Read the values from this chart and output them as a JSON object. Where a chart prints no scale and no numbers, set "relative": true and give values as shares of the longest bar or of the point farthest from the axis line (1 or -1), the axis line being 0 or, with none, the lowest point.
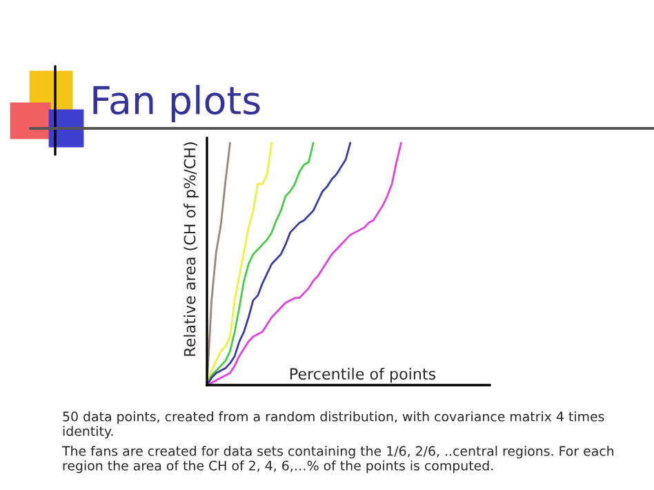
{
  "chart_data": {
    "type": "line",
    "title": "Fan plots",
    "xlabel": "Percentile of points",
    "ylabel": "Relative area (CH of p%/CH)",
    "relative": true,
    "grid": false,
    "legend": false,
    "marker": "none",
    "line_style": "solid",
    "categories": [
      null,
      null,
      null,
      null,
      null,
      null,
      null,
      null,
      null,
      null,
      null,
      null,
      null,
      null,
      null,
      null,
      null,
      null,
      null,
      null,
      null,
      null,
      null,
      null,
      null,
      null,
      null,
      null,
      null,
      null,
      null,
      null,
      null,
      null,
      null,
      null,
      null,
      null,
      null,
      null,
      null,
      null,
      null
    ],
    "series": [
      {
        "color": "#9c8478",
        "values": [
          0,
          0.35,
          0.55,
          0.66,
          0.84,
          1.0,
          null,
          null,
          null,
          null,
          null,
          null,
          null,
          null,
          null,
          null,
          null,
          null,
          null,
          null,
          null,
          null,
          null,
          null,
          null,
          null,
          null,
          null,
          null,
          null,
          null,
          null,
          null,
          null,
          null,
          null,
          null,
          null,
          null,
          null,
          null,
          null,
          null
        ]
      },
      {
        "color": "#f0f03c",
        "values": [
          0,
          0.06,
          0.1,
          0.14,
          0.16,
          0.2,
          0.35,
          0.45,
          0.55,
          0.65,
          0.72,
          0.83,
          0.83,
          0.87,
          1.0,
          null,
          null,
          null,
          null,
          null,
          null,
          null,
          null,
          null,
          null,
          null,
          null,
          null,
          null,
          null,
          null,
          null,
          null,
          null,
          null,
          null,
          null,
          null,
          null,
          null,
          null,
          null,
          null
        ]
      },
      {
        "color": "#44cc44",
        "values": [
          0,
          0.04,
          0.06,
          0.08,
          0.1,
          0.14,
          0.22,
          0.32,
          0.43,
          0.5,
          0.54,
          0.56,
          0.58,
          0.6,
          0.63,
          0.68,
          0.72,
          0.78,
          0.8,
          0.83,
          0.88,
          0.91,
          0.92,
          1.0,
          null,
          null,
          null,
          null,
          null,
          null,
          null,
          null,
          null,
          null,
          null,
          null,
          null,
          null,
          null,
          null,
          null,
          null,
          null
        ]
      },
      {
        "color": "#3a3aa0",
        "values": [
          0,
          0.03,
          0.05,
          0.06,
          0.07,
          0.09,
          0.12,
          0.18,
          0.22,
          0.28,
          0.35,
          0.37,
          0.42,
          0.46,
          0.5,
          0.52,
          0.54,
          0.58,
          0.63,
          0.65,
          0.67,
          0.68,
          0.7,
          0.72,
          0.76,
          0.8,
          0.82,
          0.85,
          0.87,
          0.9,
          0.93,
          1.0,
          null,
          null,
          null,
          null,
          null,
          null,
          null,
          null,
          null,
          null,
          null
        ]
      },
      {
        "color": "#e040e0",
        "values": [
          0,
          0.01,
          0.02,
          0.03,
          0.04,
          0.05,
          0.08,
          0.12,
          0.15,
          0.18,
          0.2,
          0.21,
          0.22,
          0.25,
          0.28,
          0.3,
          0.32,
          0.34,
          0.35,
          0.36,
          0.36,
          0.38,
          0.4,
          0.43,
          0.45,
          0.48,
          0.51,
          0.54,
          0.56,
          0.58,
          0.6,
          0.62,
          0.63,
          0.64,
          0.65,
          0.67,
          0.68,
          0.71,
          0.74,
          0.78,
          0.83,
          0.92,
          1.0
        ]
      }
    ],
    "annotations": [
      "50 data points, created from a random distribution, with covariance matrix 4 times identity.",
      "The fans are created for data sets containing the 1/6, 2/6, ..central regions. For each region the area of the CH of 2, 4, 6,…% of the points is computed."
    ]
  }
}
